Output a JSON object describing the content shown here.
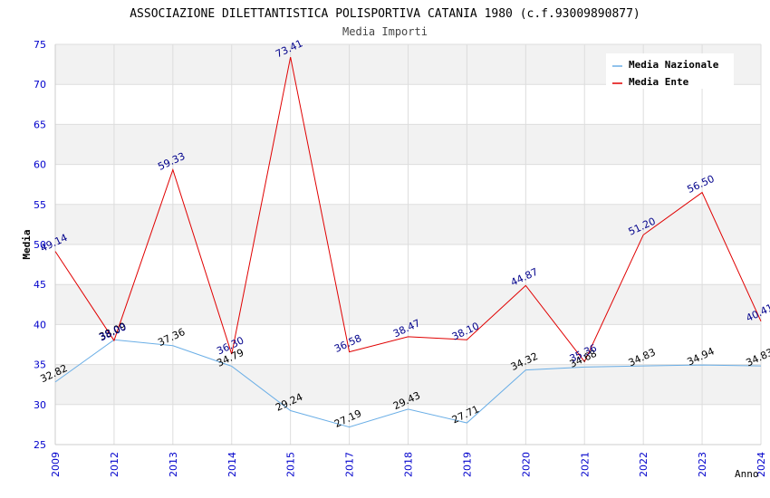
{
  "chart_data": {
    "type": "line",
    "title": "ASSOCIAZIONE DILETTANTISTICA POLISPORTIVA CATANIA 1980 (c.f.93009890877)",
    "subtitle": "Media Importi",
    "xlabel": "Anno",
    "ylabel": "Media",
    "ylim": [
      25,
      75
    ],
    "yticks": [
      25,
      30,
      35,
      40,
      45,
      50,
      55,
      60,
      65,
      70,
      75
    ],
    "categories": [
      "2009",
      "2012",
      "2013",
      "2014",
      "2015",
      "2017",
      "2018",
      "2019",
      "2020",
      "2021",
      "2022",
      "2023",
      "2024"
    ],
    "legend_position": "top-right",
    "series": [
      {
        "name": "Media Nazionale",
        "color": "#6aaee6",
        "label_color": "#000000",
        "values": [
          32.82,
          38.09,
          37.36,
          34.79,
          29.24,
          27.19,
          29.43,
          27.71,
          34.32,
          34.68,
          34.83,
          34.94,
          34.83
        ],
        "labels": [
          "32.82",
          "38.09",
          "37.36",
          "34.79",
          "29.24",
          "27.19",
          "29.43",
          "27.71",
          "34.32",
          "34.68",
          "34.83",
          "34.94",
          "34.83"
        ]
      },
      {
        "name": "Media Ente",
        "color": "#e00000",
        "label_color": "#00008b",
        "values": [
          49.14,
          38.0,
          59.33,
          36.3,
          73.41,
          36.58,
          38.47,
          38.1,
          44.87,
          35.36,
          51.2,
          56.5,
          40.41
        ],
        "labels": [
          "49.14",
          "38.00",
          "59.33",
          "36.30",
          "73.41",
          "36.58",
          "38.47",
          "38.10",
          "44.87",
          "35.36",
          "51.20",
          "56.50",
          "40.41"
        ]
      }
    ],
    "colors": {
      "axis_tick_text": "#0000cc",
      "band_fill": "#f2f2f2",
      "grid": "#dddddd"
    }
  }
}
